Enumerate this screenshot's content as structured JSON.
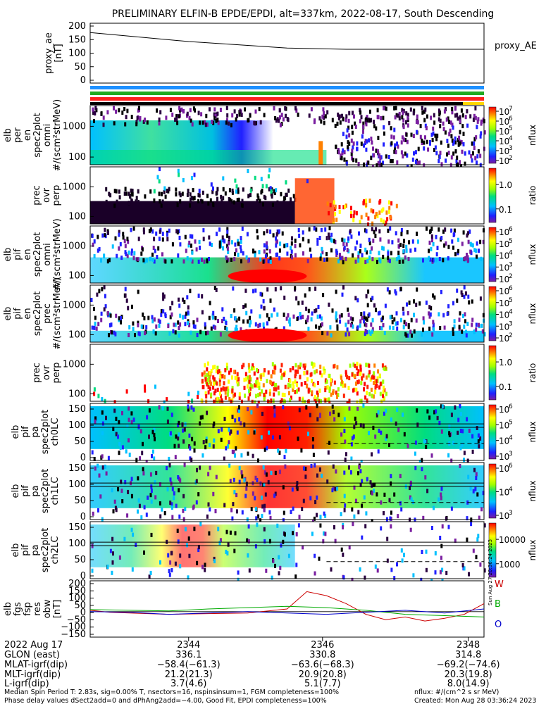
{
  "title": "PRELIMINARY ELFIN-B EPDE/EPDI, alt=337km, 2022-08-17, South Descending",
  "colors": {
    "bar1": "#1e90ff",
    "bar2": "#22aa22",
    "bar3": "#ff2020",
    "bar4": "#000000",
    "bar4_end": "#ffd700",
    "ae_line": "#000000",
    "mag_w": "#cc0000",
    "mag_b": "#00aa00",
    "mag_o": "#0000cc"
  },
  "chart_data": [
    {
      "type": "line",
      "name": "proxy_ae",
      "ylabel_lines": [
        "proxy_ae",
        "[nT]"
      ],
      "yticks": [
        "200",
        "150",
        "100",
        "50",
        "0"
      ],
      "ylim": [
        0,
        210
      ],
      "x": [
        0,
        0.5,
        1.0,
        1.3,
        2.0
      ],
      "values": [
        185,
        150,
        125,
        120,
        120
      ],
      "legend": "proxy_AE"
    },
    {
      "type": "heatmap",
      "name": "elb-per-en-spec2plot-omni",
      "ylabel_lines": [
        "elb",
        "per",
        "en",
        "spec2plot",
        "omni",
        "#/(scm²strMeV)"
      ],
      "yticks": [
        "1000",
        "100"
      ],
      "colorbar_ticks": [
        "10^7",
        "10^6",
        "10^5",
        "10^4",
        "10^3",
        "10^2"
      ],
      "colorbar_label": "nflux"
    },
    {
      "type": "heatmap",
      "name": "prec-ovr-perp-1",
      "ylabel_lines": [
        "prec",
        "ovr",
        "perp"
      ],
      "yticks": [
        "1000",
        "100"
      ],
      "colorbar_ticks": [
        "1.0",
        "0.1"
      ],
      "colorbar_label": "ratio"
    },
    {
      "type": "heatmap",
      "name": "elb-pif-en-spec2plot-omni",
      "ylabel_lines": [
        "elb",
        "pif",
        "en",
        "spec2plot",
        "omni",
        "#/(scm²strMeV)"
      ],
      "yticks": [
        "1000",
        "100"
      ],
      "colorbar_ticks": [
        "10^6",
        "10^5",
        "10^4",
        "10^3",
        "10^2"
      ],
      "colorbar_label": "nflux"
    },
    {
      "type": "heatmap",
      "name": "elb-pif-en-spec2plot-prec",
      "ylabel_lines": [
        "elb",
        "pif",
        "en",
        "spec2plot",
        "prec",
        "#/(scm²strMeV)"
      ],
      "yticks": [
        "1000",
        "100"
      ],
      "colorbar_ticks": [
        "10^6",
        "10^5",
        "10^4",
        "10^3",
        "10^2"
      ],
      "colorbar_label": "nflux"
    },
    {
      "type": "heatmap",
      "name": "prec-ovr-perp-2",
      "ylabel_lines": [
        "prec",
        "ovr",
        "perp"
      ],
      "yticks": [
        "1000",
        "100"
      ],
      "colorbar_ticks": [
        "1.0",
        "0.1"
      ],
      "colorbar_label": "ratio"
    },
    {
      "type": "heatmap",
      "name": "elb-pif-pa-spec2plot-ch0LC",
      "ylabel_lines": [
        "elb",
        "pif",
        "pa",
        "spec2plot",
        "ch0LC"
      ],
      "yticks": [
        "150",
        "100",
        "50",
        "0"
      ],
      "colorbar_ticks": [
        "10^6",
        "10^5",
        "10^4",
        "10^3"
      ],
      "colorbar_label": "nflux"
    },
    {
      "type": "heatmap",
      "name": "elb-pif-pa-spec2plot-ch1LC",
      "ylabel_lines": [
        "elb",
        "pif",
        "pa",
        "spec2plot",
        "ch1LC"
      ],
      "yticks": [
        "150",
        "100",
        "50",
        "0"
      ],
      "colorbar_ticks": [
        "10^6",
        "10^4",
        "10^3"
      ],
      "colorbar_label": "nflux"
    },
    {
      "type": "heatmap",
      "name": "elb-pif-pa-spec2plot-ch2LC",
      "ylabel_lines": [
        "elb",
        "pif",
        "pa",
        "spec2plot",
        "ch2LC"
      ],
      "yticks": [
        "150",
        "100",
        "50",
        "0"
      ],
      "colorbar_ticks": [
        "10000",
        "1000"
      ],
      "colorbar_label": "nflux"
    },
    {
      "type": "line",
      "name": "elb-fgs-fsp-res-obw",
      "ylabel_lines": [
        "elb",
        "fgs",
        "fsp",
        "res",
        "obw",
        "[nT]"
      ],
      "yticks": [
        "200",
        "150",
        "100",
        "50",
        "0",
        "−50",
        "−100",
        "−150"
      ],
      "ylim": [
        -170,
        210
      ],
      "legend_entries": [
        "W",
        "B",
        "O"
      ],
      "series": [
        {
          "name": "W",
          "x": [
            0,
            0.1,
            0.2,
            0.4,
            0.6,
            0.8,
            1.0,
            1.1,
            1.2,
            1.3,
            1.4,
            1.5,
            1.6,
            1.7,
            1.8,
            1.9,
            2.0
          ],
          "values": [
            10,
            -5,
            -10,
            -20,
            -15,
            -10,
            20,
            150,
            120,
            60,
            -20,
            -60,
            -40,
            -70,
            -50,
            -20,
            60
          ]
        },
        {
          "name": "B",
          "x": [
            0,
            0.2,
            0.4,
            0.6,
            0.8,
            1.0,
            1.2,
            1.4,
            1.6,
            1.8,
            2.0
          ],
          "values": [
            15,
            10,
            5,
            20,
            30,
            40,
            30,
            10,
            -20,
            -30,
            -40
          ]
        },
        {
          "name": "O",
          "x": [
            0,
            0.2,
            0.4,
            0.6,
            0.8,
            1.0,
            1.2,
            1.4,
            1.6,
            1.8,
            2.0
          ],
          "values": [
            0,
            -5,
            -20,
            -10,
            0,
            -10,
            -20,
            -5,
            10,
            -10,
            20
          ]
        }
      ]
    }
  ],
  "x_axis": {
    "time_ticks": [
      "2344",
      "2346",
      "2348"
    ],
    "rows": [
      {
        "label": "2022 Aug 17",
        "values": [
          "2344",
          "2346",
          "2348"
        ]
      },
      {
        "label": "GLON (east)",
        "values": [
          "336.1",
          "330.8",
          "314.8"
        ]
      },
      {
        "label": "MLAT-igrf(dip)",
        "values": [
          "−58.4(−61.3)",
          "−63.6(−68.3)",
          "−69.2(−74.6)"
        ]
      },
      {
        "label": "MLT-igrf(dip)",
        "values": [
          "21.2(21.3)",
          "20.9(20.8)",
          "20.3(19.8)"
        ]
      },
      {
        "label": "L-igrf(dip)",
        "values": [
          "3.7(4.6)",
          "5.1(7.7)",
          "8.0(14.9)"
        ]
      }
    ]
  },
  "footer": {
    "line1_left": "Median Spin Period T: 2.83s, sig=0.00% T, nsectors=16, nspinsinsum=1, FGM completeness=100%",
    "line2_left": "Phase delay values dSect2add=0 and dPhAng2add=−4.00, Good Fit, EPDI completeness=100%",
    "line1_right": "nflux: #/(cm^2 s sr MeV)",
    "line2_right": "Created: Mon Aug 28 03:36:24 2023",
    "side_stamp": "Sun Aug 27 20:36:24 2023"
  }
}
